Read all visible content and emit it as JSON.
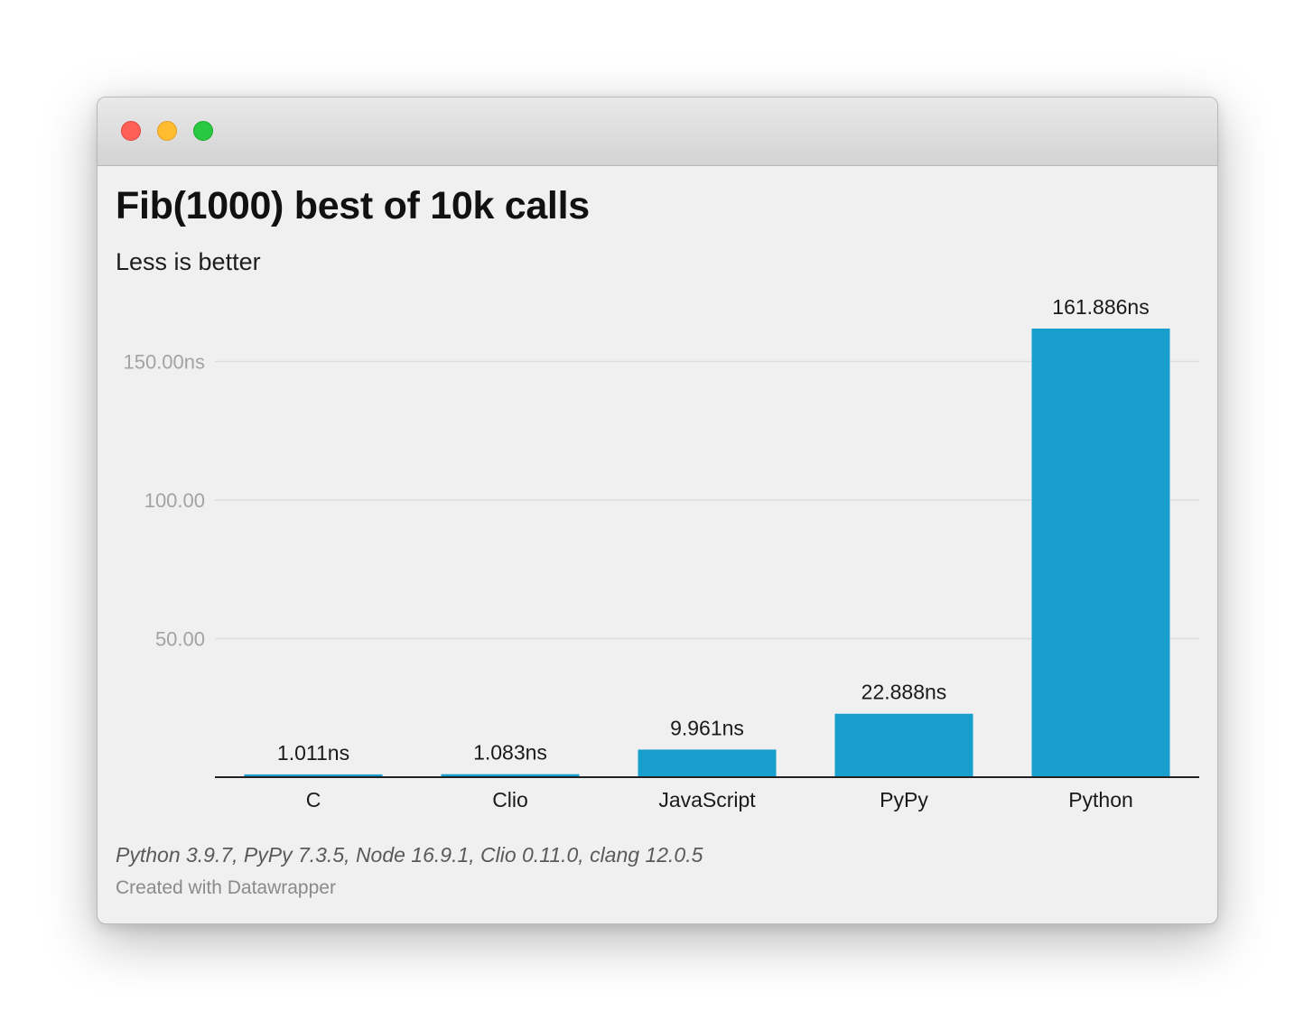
{
  "window": {
    "controls": {
      "close_icon": "close-dot-icon",
      "minimize_icon": "minimize-dot-icon",
      "zoom_icon": "zoom-dot-icon",
      "colors": {
        "close": "#fe5f57",
        "minimize": "#febc2e",
        "zoom": "#28c840"
      }
    }
  },
  "chart_data": {
    "type": "bar",
    "title": "Fib(1000) best of 10k calls",
    "subtitle": "Less is better",
    "categories": [
      "C",
      "Clio",
      "JavaScript",
      "PyPy",
      "Python"
    ],
    "values": [
      1.011,
      1.083,
      9.961,
      22.888,
      161.886
    ],
    "value_labels": [
      "1.011ns",
      "1.083ns",
      "9.961ns",
      "22.888ns",
      "161.886ns"
    ],
    "y_ticks": [
      {
        "value": 150,
        "label": "150.00ns"
      },
      {
        "value": 100,
        "label": "100.00"
      },
      {
        "value": 50,
        "label": "50.00"
      }
    ],
    "ylim": [
      0,
      161.886
    ],
    "grid": true,
    "bar_color": "#199fce",
    "notes": "Python 3.9.7, PyPy 7.3.5, Node 16.9.1, Clio 0.11.0, clang 12.0.5",
    "credit": "Created with Datawrapper"
  }
}
